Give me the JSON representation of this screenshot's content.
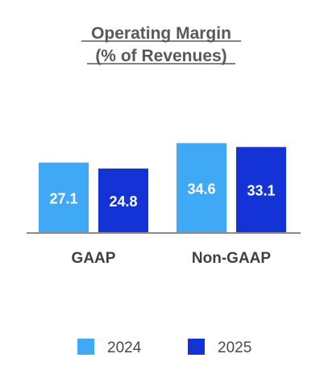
{
  "chart_data": {
    "type": "bar",
    "title": "Operating Margin",
    "subtitle": "(% of Revenues)",
    "categories": [
      "GAAP",
      "Non-GAAP"
    ],
    "series": [
      {
        "name": "2024",
        "color": "#3fa9f5",
        "values": [
          27.1,
          34.6
        ]
      },
      {
        "name": "2025",
        "color": "#1433d6",
        "values": [
          24.8,
          33.1
        ]
      }
    ],
    "ylim": [
      0,
      39.1
    ],
    "value_format": "0.0",
    "grid": false,
    "legend_position": "bottom",
    "axis_color": "#8c8c8c"
  }
}
